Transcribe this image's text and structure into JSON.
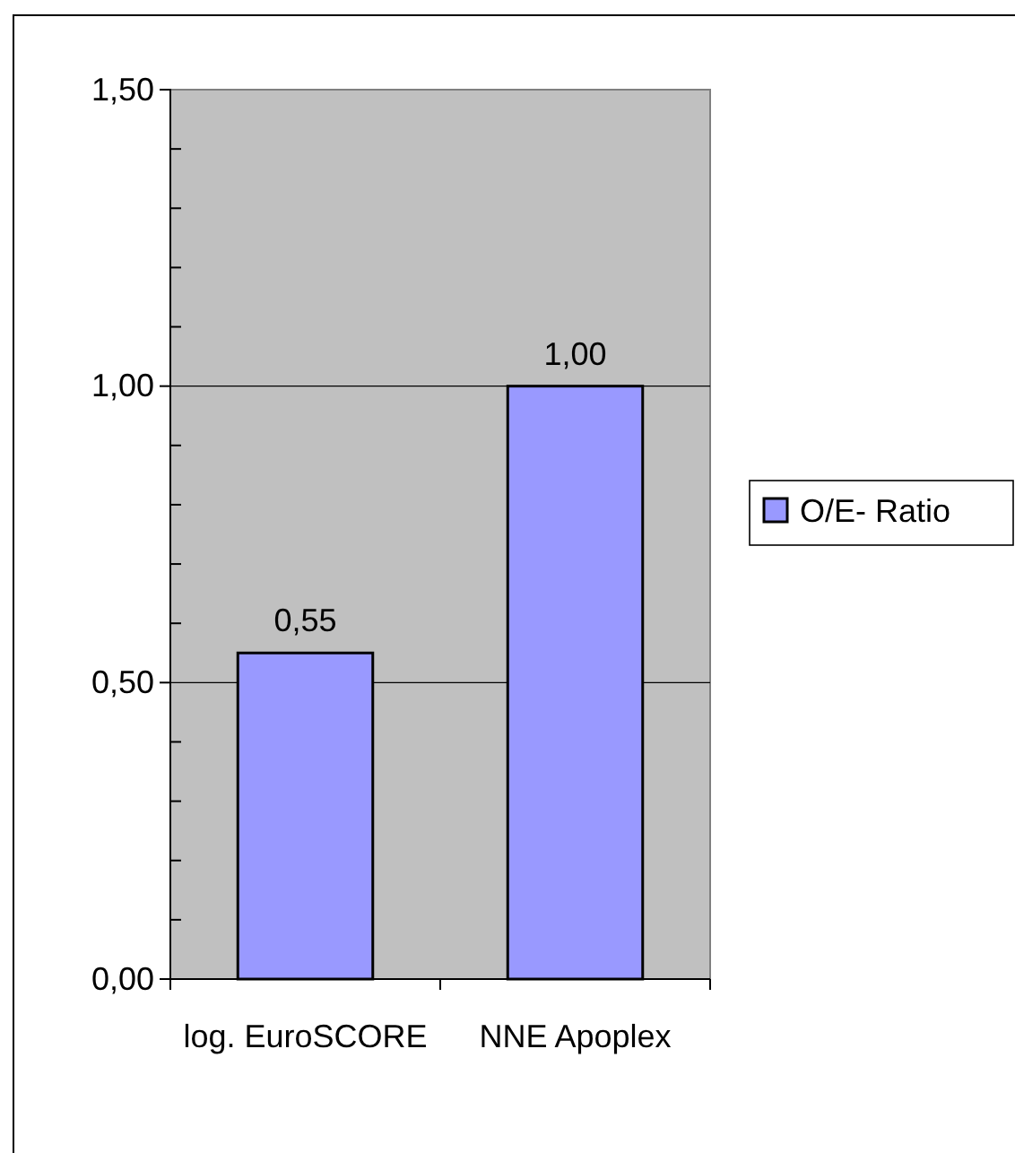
{
  "chart_data": {
    "type": "bar",
    "categories": [
      "log. EuroSCORE",
      "NNE Apoplex"
    ],
    "series": [
      {
        "name": "O/E- Ratio",
        "color": "#9999ff",
        "values": [
          0.55,
          1.0
        ]
      }
    ],
    "ylim": [
      0,
      1.5
    ],
    "yticks": [
      {
        "value": 0,
        "label": "0,00"
      },
      {
        "value": 0.1,
        "label": null
      },
      {
        "value": 0.2,
        "label": null
      },
      {
        "value": 0.3,
        "label": null
      },
      {
        "value": 0.4,
        "label": null
      },
      {
        "value": 0.5,
        "label": "0,50"
      },
      {
        "value": 0.6,
        "label": null
      },
      {
        "value": 0.7,
        "label": null
      },
      {
        "value": 0.8,
        "label": null
      },
      {
        "value": 0.9,
        "label": null
      },
      {
        "value": 1.0,
        "label": "1,00"
      },
      {
        "value": 1.1,
        "label": null
      },
      {
        "value": 1.2,
        "label": null
      },
      {
        "value": 1.3,
        "label": null
      },
      {
        "value": 1.4,
        "label": null
      },
      {
        "value": 1.5,
        "label": "1,50"
      }
    ],
    "value_labels": [
      "0,55",
      "1,00"
    ],
    "grid": "y",
    "legend": "right"
  }
}
